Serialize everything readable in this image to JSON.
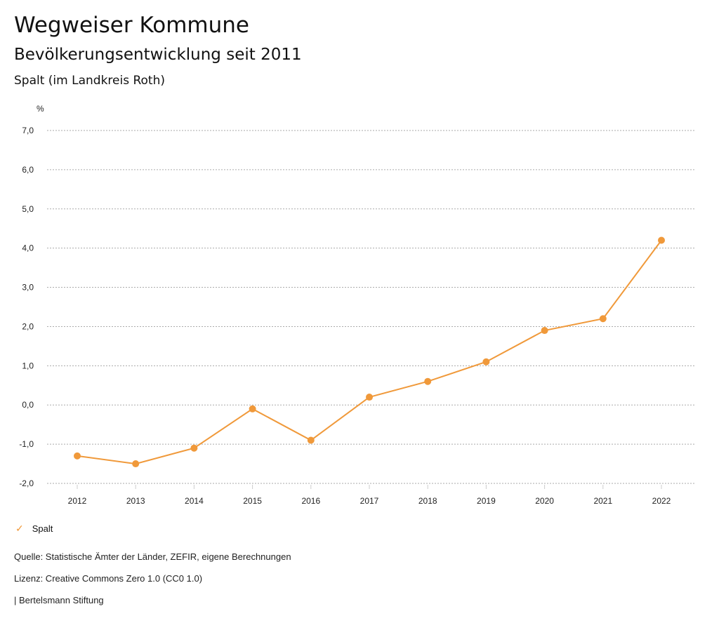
{
  "header": {
    "title": "Wegweiser Kommune",
    "subtitle": "Bevölkerungsentwicklung seit 2011",
    "region": "Spalt (im Landkreis Roth)"
  },
  "chart_data": {
    "type": "line",
    "ylabel": "%",
    "x": [
      "2012",
      "2013",
      "2014",
      "2015",
      "2016",
      "2017",
      "2018",
      "2019",
      "2020",
      "2021",
      "2022"
    ],
    "series": [
      {
        "name": "Spalt",
        "color": "#f0993a",
        "values": [
          -1.3,
          -1.5,
          -1.1,
          -0.1,
          -0.9,
          0.2,
          0.6,
          1.1,
          1.9,
          2.2,
          4.2
        ]
      }
    ],
    "ylim": [
      -2,
      7
    ],
    "yticks": [
      7,
      6,
      5,
      4,
      3,
      2,
      1,
      0,
      -1,
      -2
    ],
    "ytick_labels": [
      "7,0",
      "6,0",
      "5,0",
      "4,0",
      "3,0",
      "2,0",
      "1,0",
      "0,0",
      "-1,0",
      "-2,0"
    ],
    "grid": true,
    "legend_position": "bottom-left"
  },
  "legend": {
    "label": "Spalt",
    "icon": "check-icon"
  },
  "footer": {
    "source": "Quelle: Statistische Ämter der Länder, ZEFIR, eigene Berechnungen",
    "license": "Lizenz: Creative Commons Zero 1.0 (CC0 1.0)",
    "publisher": "| Bertelsmann Stiftung"
  }
}
